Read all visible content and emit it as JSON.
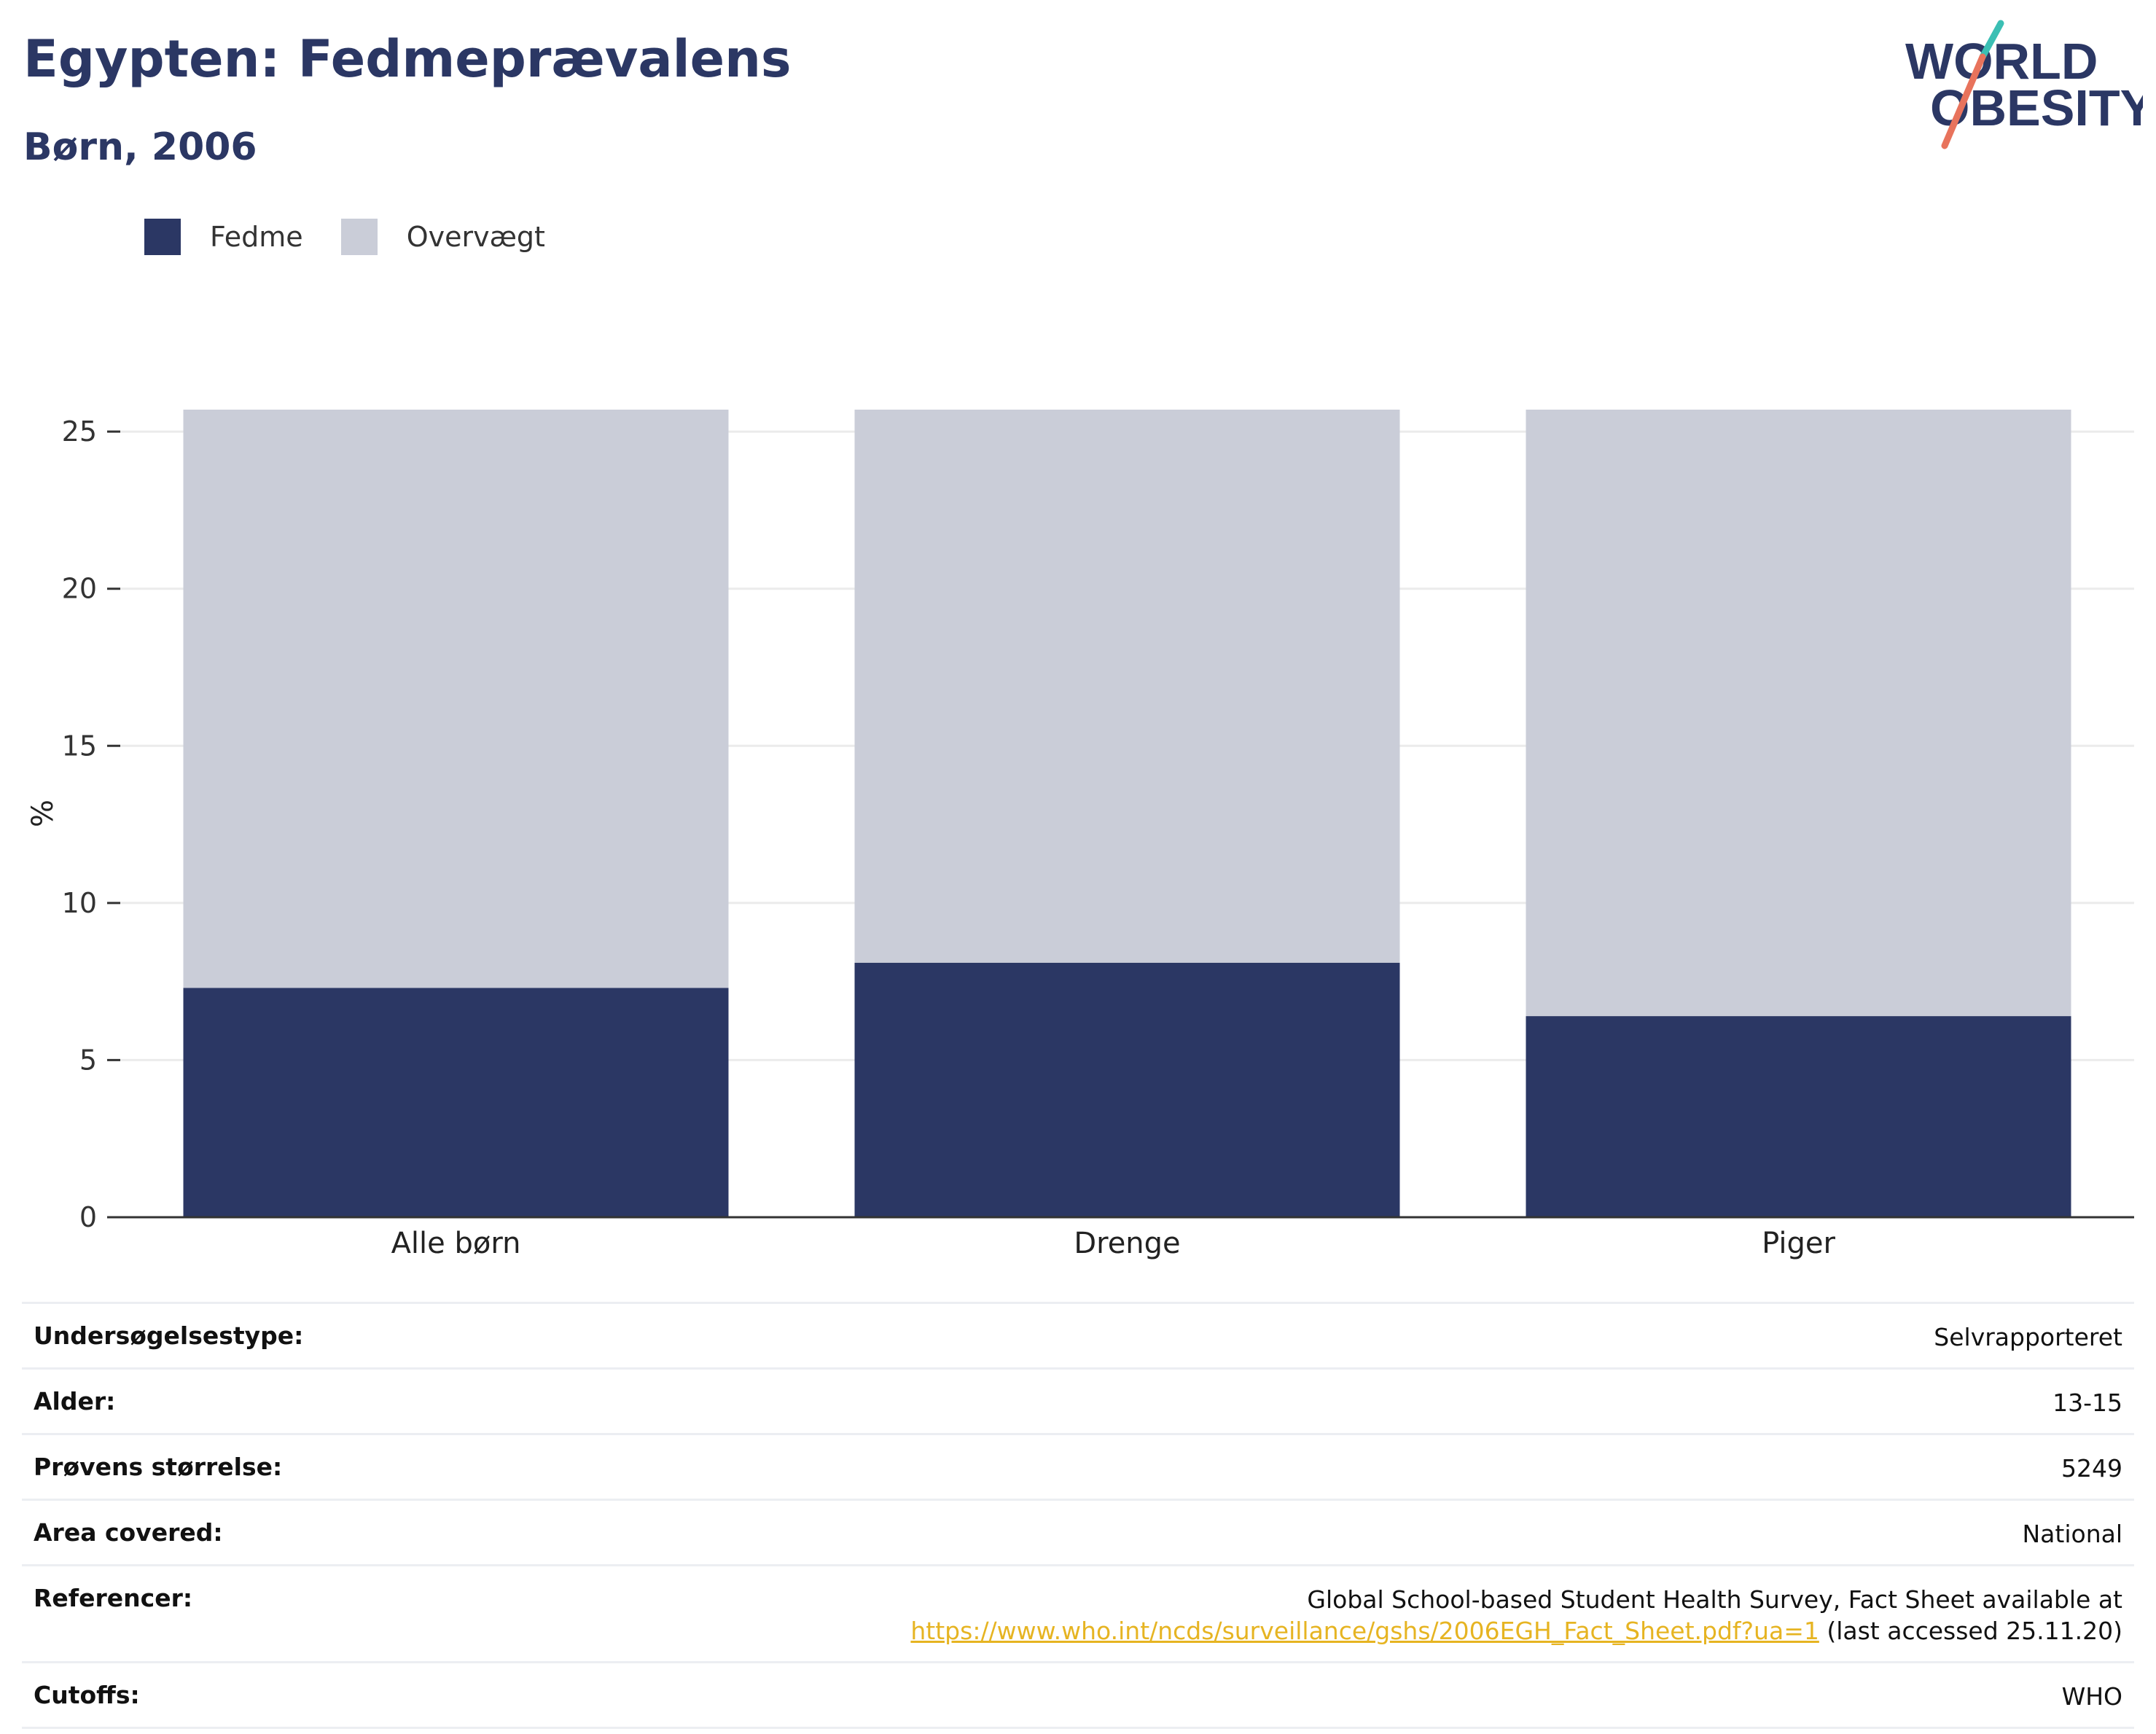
{
  "header": {
    "title": "Egypten: Fedmeprævalens",
    "subtitle": "Børn, 2006"
  },
  "logo": {
    "line1": "WORLD",
    "line2": "OBESITY",
    "slash_top_color": "#3bbfb4",
    "slash_bottom_color": "#e8735c"
  },
  "colors": {
    "fedme": "#2b3764",
    "overvaegt": "#cacdd8",
    "gridline": "#ebebeb",
    "axis": "#333333",
    "link": "#e6b422"
  },
  "legend": [
    {
      "label": "Fedme",
      "color": "#2b3764"
    },
    {
      "label": "Overvægt",
      "color": "#cacdd8"
    }
  ],
  "chart_data": {
    "type": "bar",
    "stacked": true,
    "categories": [
      "Alle børn",
      "Drenge",
      "Piger"
    ],
    "series": [
      {
        "name": "Fedme",
        "values": [
          7.3,
          8.1,
          6.4
        ]
      },
      {
        "name": "Overvægt",
        "values": [
          18.4,
          17.6,
          19.3
        ]
      }
    ],
    "totals": [
      25.7,
      25.7,
      25.7
    ],
    "ylabel": "%",
    "ylim": [
      0,
      25.7
    ],
    "yticks": [
      0,
      5,
      10,
      15,
      20,
      25
    ],
    "grid": true,
    "legend_position": "top-left"
  },
  "info": [
    {
      "key": "Undersøgelsestype:",
      "value": "Selvrapporteret"
    },
    {
      "key": "Alder:",
      "value": "13-15"
    },
    {
      "key": "Prøvens størrelse:",
      "value": "5249"
    },
    {
      "key": "Area covered:",
      "value": "National"
    },
    {
      "key": "Referencer:",
      "value": "Global School-based Student Health Survey, Fact Sheet available at",
      "link": "https://www.who.int/ncds/surveillance/gshs/2006EGH_Fact_Sheet.pdf?ua=1",
      "suffix": " (last accessed 25.11.20)"
    },
    {
      "key": "Cutoffs:",
      "value": "WHO"
    }
  ]
}
